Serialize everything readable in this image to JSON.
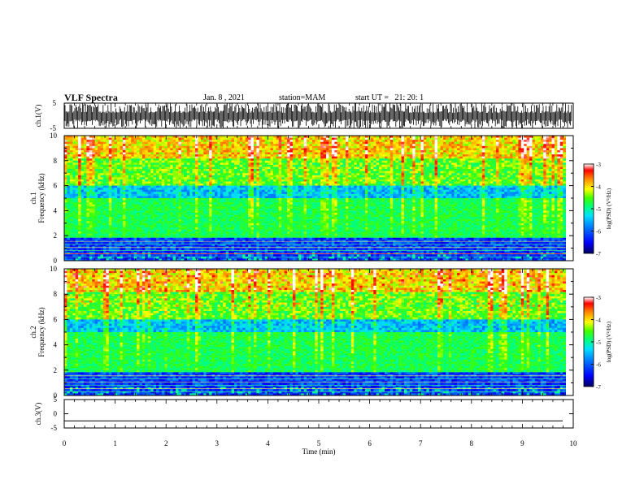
{
  "header": {
    "title": "VLF Spectra",
    "date": "Jan. 8 , 2021",
    "station": "station=MAM",
    "start": "start UT =   21: 20: 1"
  },
  "chart_data": [
    {
      "type": "line",
      "panel": "ch1-waveform",
      "ylabel": "ch.1(V)",
      "ylim": [
        -5,
        5
      ],
      "yticks": [
        "5",
        "-5"
      ],
      "xlim": [
        0,
        10
      ],
      "description_values": "dense oscillating waveform filling most of range"
    },
    {
      "type": "heatmap",
      "panel": "ch1-spectrogram",
      "ylabel": "ch.1\nFrequency (kHz)",
      "ylabel_line1": "ch.1",
      "ylabel_line2": "Frequency (kHz)",
      "ylim": [
        0,
        10
      ],
      "yticks": [
        "0",
        "2",
        "4",
        "6",
        "8",
        "10"
      ],
      "xlim": [
        0,
        9.85
      ],
      "colorbar": {
        "label": "log(PSD) (V²/Hz)",
        "range": [
          -7,
          -3
        ],
        "ticks": [
          "-3",
          "-4",
          "-5",
          "-6",
          "-7"
        ]
      }
    },
    {
      "type": "heatmap",
      "panel": "ch2-spectrogram",
      "ylabel_line1": "ch.2",
      "ylabel_line2": "Frequency (kHz)",
      "ylim": [
        0,
        10
      ],
      "yticks": [
        "0",
        "2",
        "4",
        "6",
        "8",
        "10"
      ],
      "xlim": [
        0,
        9.85
      ],
      "colorbar": {
        "label": "log(PSD) (V²/Hz)",
        "range": [
          -7,
          -3
        ],
        "ticks": [
          "-3",
          "-4",
          "-5",
          "-6",
          "-7"
        ]
      }
    },
    {
      "type": "line",
      "panel": "ch3-waveform",
      "ylabel": "ch.3(V)",
      "ylim": [
        -5,
        5
      ],
      "yticks": [
        "5",
        "0",
        "-5"
      ],
      "flat_level": -2.5,
      "xlabel": "Time (min)",
      "xlim": [
        0,
        10
      ],
      "xticks": [
        "0",
        "1",
        "2",
        "3",
        "4",
        "5",
        "6",
        "7",
        "8",
        "9",
        "10"
      ]
    }
  ],
  "colors": {
    "background": "#ffffff",
    "axis": "#000000"
  }
}
